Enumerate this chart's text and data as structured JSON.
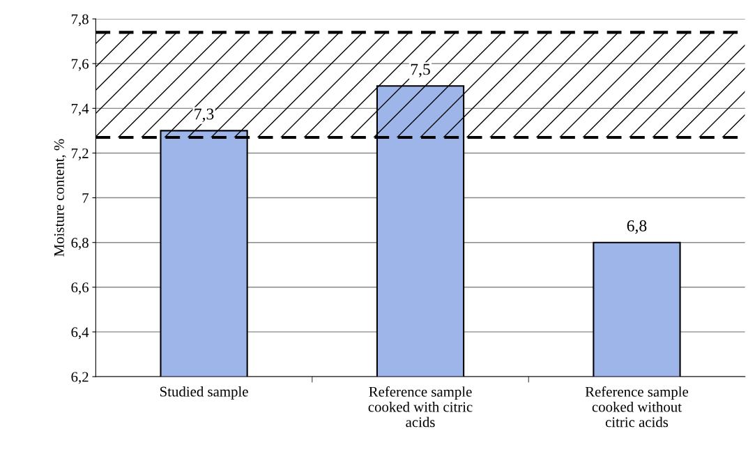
{
  "chart_data": {
    "type": "bar",
    "ylabel": "Moisture content, %",
    "categories": [
      "Studied sample",
      "Reference sample\ncooked with citric\nacids",
      "Reference sample\ncooked without\ncitric acids"
    ],
    "values": [
      7.3,
      7.5,
      6.8
    ],
    "value_labels": [
      "7,3",
      "7,5",
      "6,8"
    ],
    "color": "#9db5e8",
    "ylim": [
      6.2,
      7.8
    ],
    "yticks": [
      {
        "value": 6.2,
        "label": "6,2"
      },
      {
        "value": 6.4,
        "label": "6,4"
      },
      {
        "value": 6.6,
        "label": "6,6"
      },
      {
        "value": 6.8,
        "label": "6,8"
      },
      7,
      {
        "value": 7.2,
        "label": "7,2"
      },
      {
        "value": 7.4,
        "label": "7,4"
      },
      {
        "value": 7.6,
        "label": "7,6"
      },
      {
        "value": 7.8,
        "label": "7,8"
      }
    ],
    "bands": [
      {
        "axis": "y",
        "from": 7.27,
        "to": 7.74,
        "color": "#000000"
      }
    ],
    "ref_lines": [
      {
        "axis": "y",
        "value": 7.27,
        "line_style": "dashed",
        "color": "#000000"
      },
      {
        "axis": "y",
        "value": 7.74,
        "line_style": "dashed",
        "color": "#000000"
      }
    ],
    "grid": "y",
    "legend": false
  }
}
